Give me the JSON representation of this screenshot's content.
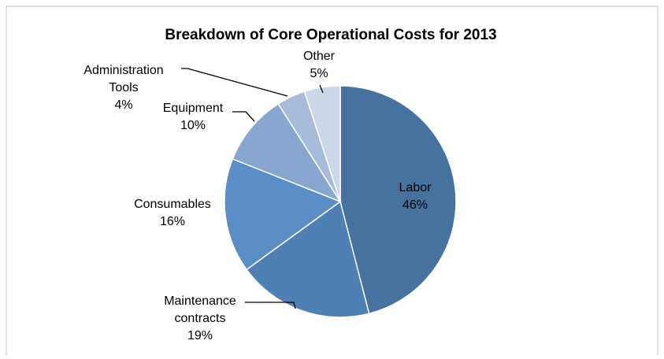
{
  "chart_data": {
    "type": "pie",
    "title": "Breakdown of Core Operational Costs for 2013",
    "categories": [
      "Labor",
      "Maintenance contracts",
      "Consumables",
      "Equipment",
      "Administration Tools",
      "Other"
    ],
    "values": [
      46,
      19,
      16,
      10,
      4,
      5
    ],
    "value_labels": [
      "46%",
      "19%",
      "16%",
      "10%",
      "4%",
      "5%"
    ],
    "label_lines": [
      [
        "Labor"
      ],
      [
        "Maintenance",
        "contracts"
      ],
      [
        "Consumables"
      ],
      [
        "Equipment"
      ],
      [
        "Administration",
        "Tools"
      ],
      [
        "Other"
      ]
    ],
    "colors": [
      "#45729F",
      "#4E80B5",
      "#5B8DC6",
      "#87A7D0",
      "#A6BCDA",
      "#CCD7E7"
    ],
    "legend": "none",
    "start": "12 o'clock",
    "direction": "clockwise"
  }
}
